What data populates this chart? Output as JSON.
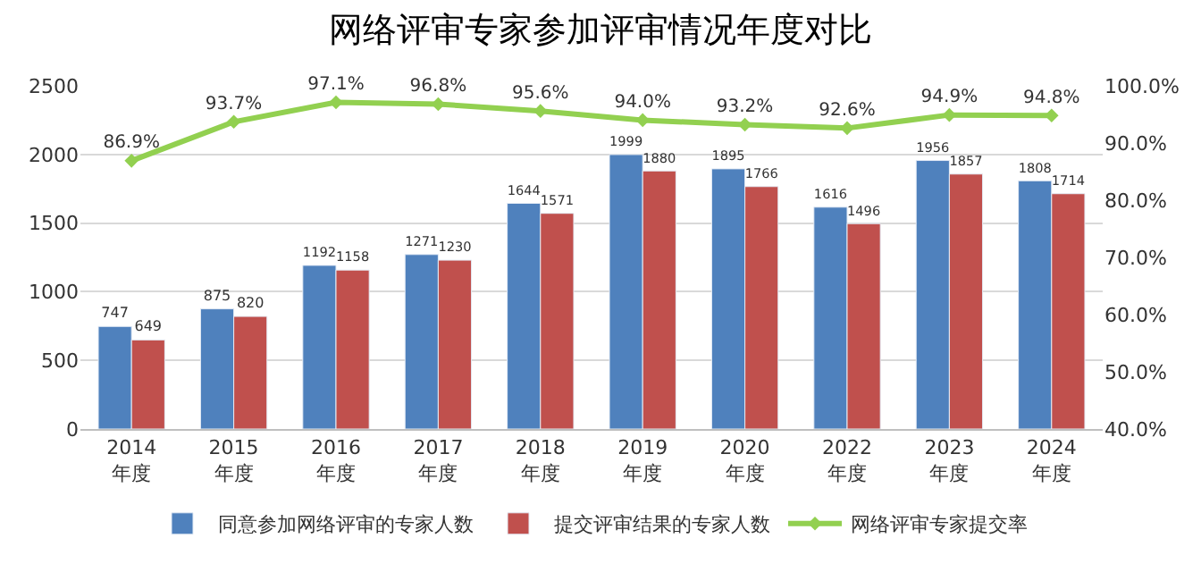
{
  "chart_data": {
    "type": "bar",
    "title": "网络评审专家参加评审情况年度对比",
    "categories": [
      "2014\n年度",
      "2015\n年度",
      "2016\n年度",
      "2017\n年度",
      "2018\n年度",
      "2019\n年度",
      "2020\n年度",
      "2022\n年度",
      "2023\n年度",
      "2024\n年度"
    ],
    "series": [
      {
        "name": "同意参加网络评审的专家人数",
        "color": "#4f81bd",
        "values": [
          747,
          875,
          1192,
          1271,
          1644,
          1999,
          1895,
          1616,
          1956,
          1808
        ]
      },
      {
        "name": "提交评审结果的专家人数",
        "color": "#c0504d",
        "values": [
          649,
          820,
          1158,
          1230,
          1571,
          1880,
          1766,
          1496,
          1857,
          1714
        ]
      },
      {
        "name": "网络评审专家提交率",
        "type": "line",
        "axis": "y2",
        "color": "#92d050",
        "marker": "diamond",
        "values": [
          86.9,
          93.7,
          97.1,
          96.8,
          95.6,
          94.0,
          93.2,
          92.6,
          94.9,
          94.8
        ],
        "value_labels": [
          "86.9%",
          "93.7%",
          "97.1%",
          "96.8%",
          "95.6%",
          "94.0%",
          "93.2%",
          "92.6%",
          "94.9%",
          "94.8%"
        ]
      }
    ],
    "data_labels": true,
    "ylim": [
      0,
      2500
    ],
    "yticks": [
      0,
      500,
      1000,
      1500,
      2000,
      2500
    ],
    "y2lim": [
      40,
      100
    ],
    "y2ticks": [
      {
        "value": 40,
        "label": "40.0%"
      },
      {
        "value": 50,
        "label": "50.0%"
      },
      {
        "value": 60,
        "label": "60.0%"
      },
      {
        "value": 70,
        "label": "70.0%"
      },
      {
        "value": 80,
        "label": "80.0%"
      },
      {
        "value": 90,
        "label": "90.0%"
      },
      {
        "value": 100,
        "label": "100.0%"
      }
    ],
    "grid": "y",
    "legend": "bottom"
  }
}
